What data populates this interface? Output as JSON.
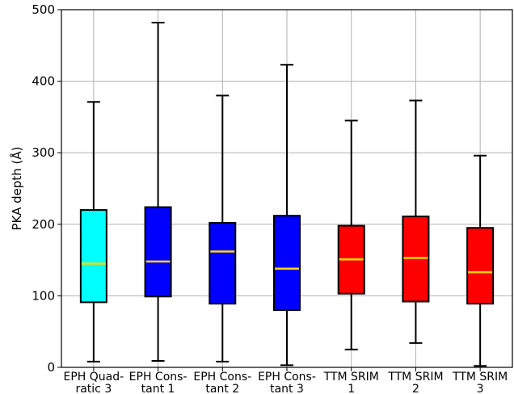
{
  "chart_data": {
    "type": "box",
    "title": "",
    "xlabel": "",
    "ylabel": "PKA depth (Å)",
    "ylim": [
      0,
      500
    ],
    "yticks": [
      0,
      100,
      200,
      300,
      400,
      500
    ],
    "grid": true,
    "median_color": "#ffd700",
    "categories": [
      {
        "label_lines": [
          "EPH Quad-",
          "ratic 3"
        ],
        "color": "#00ffff",
        "min": 8,
        "q1": 91,
        "median": 145,
        "q3": 220,
        "max": 371
      },
      {
        "label_lines": [
          "EPH Cons-",
          "tant 1"
        ],
        "color": "#0000ff",
        "min": 9,
        "q1": 99,
        "median": 148,
        "q3": 224,
        "max": 482
      },
      {
        "label_lines": [
          "EPH Cons-",
          "tant 2"
        ],
        "color": "#0000ff",
        "min": 8,
        "q1": 89,
        "median": 162,
        "q3": 202,
        "max": 380
      },
      {
        "label_lines": [
          "EPH Cons-",
          "tant 3"
        ],
        "color": "#0000ff",
        "min": 3,
        "q1": 80,
        "median": 138,
        "q3": 212,
        "max": 423
      },
      {
        "label_lines": [
          "TTM SRIM",
          "1"
        ],
        "color": "#ff0000",
        "min": 25,
        "q1": 103,
        "median": 151,
        "q3": 198,
        "max": 345
      },
      {
        "label_lines": [
          "TTM SRIM",
          "2"
        ],
        "color": "#ff0000",
        "min": 34,
        "q1": 92,
        "median": 153,
        "q3": 211,
        "max": 373
      },
      {
        "label_lines": [
          "TTM SRIM",
          "3"
        ],
        "color": "#ff0000",
        "min": 2,
        "q1": 89,
        "median": 133,
        "q3": 195,
        "max": 296
      }
    ]
  }
}
